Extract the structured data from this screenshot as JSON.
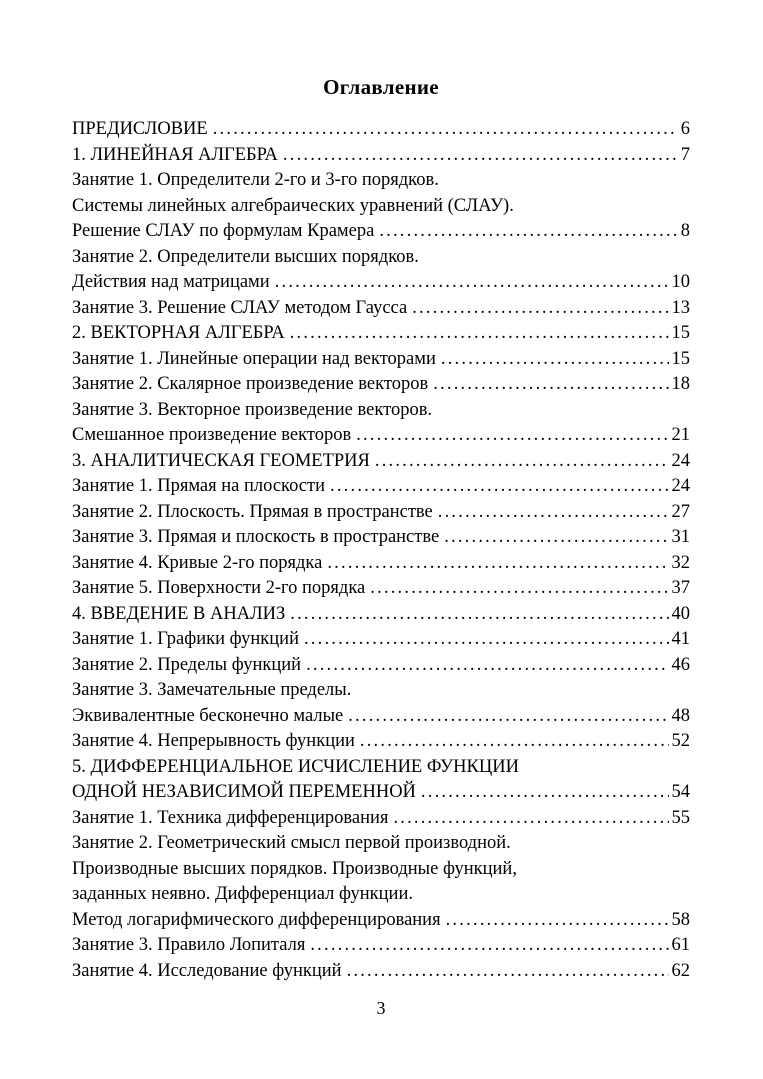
{
  "page": {
    "title": "Оглавление",
    "footer_page_number": "3",
    "toc": [
      {
        "text": "ПРЕДИСЛОВИЕ",
        "page": "6"
      },
      {
        "text": "1. ЛИНЕЙНАЯ АЛГЕБРА",
        "page": "7"
      },
      {
        "text": "Занятие 1. Определители 2-го и 3-го порядков.",
        "page": ""
      },
      {
        "text": "Системы линейных алгебраических уравнений (СЛАУ).",
        "page": ""
      },
      {
        "text": "Решение СЛАУ по формулам Крамера",
        "page": "8"
      },
      {
        "text": "Занятие 2. Определители высших порядков.",
        "page": ""
      },
      {
        "text": "Действия над матрицами",
        "page": "10"
      },
      {
        "text": "Занятие 3. Решение СЛАУ методом Гаусса",
        "page": "13"
      },
      {
        "text": "2. ВЕКТОРНАЯ АЛГЕБРА",
        "page": "15"
      },
      {
        "text": "Занятие 1. Линейные операции над векторами",
        "page": "15"
      },
      {
        "text": "Занятие 2. Скалярное произведение векторов",
        "page": "18"
      },
      {
        "text": "Занятие 3. Векторное произведение векторов.",
        "page": ""
      },
      {
        "text": "Смешанное произведение векторов",
        "page": "21"
      },
      {
        "text": "3. АНАЛИТИЧЕСКАЯ ГЕОМЕТРИЯ",
        "page": "24"
      },
      {
        "text": "Занятие 1. Прямая на плоскости",
        "page": "24"
      },
      {
        "text": "Занятие 2. Плоскость. Прямая в пространстве",
        "page": "27"
      },
      {
        "text": "Занятие 3. Прямая и плоскость в пространстве",
        "page": "31"
      },
      {
        "text": "Занятие 4. Кривые 2-го порядка",
        "page": "32"
      },
      {
        "text": "Занятие 5. Поверхности 2-го порядка",
        "page": "37"
      },
      {
        "text": "4. ВВЕДЕНИЕ В АНАЛИЗ",
        "page": "40"
      },
      {
        "text": "Занятие 1. Графики функций",
        "page": "41"
      },
      {
        "text": "Занятие 2. Пределы функций",
        "page": "46"
      },
      {
        "text": "Занятие 3. Замечательные пределы.",
        "page": ""
      },
      {
        "text": "Эквивалентные бесконечно малые",
        "page": "48"
      },
      {
        "text": "Занятие 4. Непрерывность функции",
        "page": "52"
      },
      {
        "text": "5. ДИФФЕРЕНЦИАЛЬНОЕ ИСЧИСЛЕНИЕ ФУНКЦИИ",
        "page": ""
      },
      {
        "text": "ОДНОЙ НЕЗАВИСИМОЙ ПЕРЕМЕННОЙ",
        "page": "54"
      },
      {
        "text": "Занятие 1. Техника дифференцирования",
        "page": "55"
      },
      {
        "text": "Занятие 2. Геометрический смысл первой производной.",
        "page": ""
      },
      {
        "text": "Производные высших порядков. Производные функций,",
        "page": ""
      },
      {
        "text": "заданных неявно. Дифференциал функции.",
        "page": ""
      },
      {
        "text": "Метод логарифмического дифференцирования",
        "page": "58"
      },
      {
        "text": "Занятие 3. Правило Лопиталя",
        "page": "61"
      },
      {
        "text": "Занятие 4. Исследование функций",
        "page": "62"
      }
    ]
  }
}
